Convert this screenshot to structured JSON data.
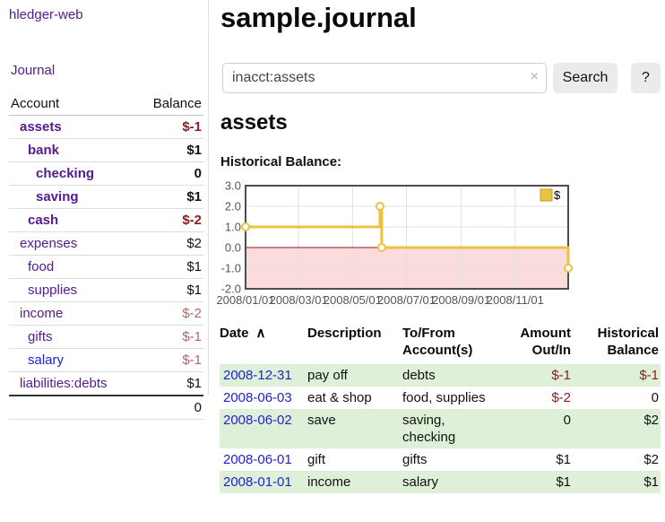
{
  "app": {
    "title": "hledger-web"
  },
  "sidebar": {
    "journal_link": "Journal",
    "accounts_header": {
      "account": "Account",
      "balance": "Balance"
    },
    "accounts": [
      {
        "name": "assets",
        "balance": "$-1",
        "level": 0,
        "bold": true,
        "neg": true,
        "unvisited": false
      },
      {
        "name": "bank",
        "balance": "$1",
        "level": 1,
        "bold": true,
        "neg": false,
        "unvisited": false
      },
      {
        "name": "checking",
        "balance": "0",
        "level": 2,
        "bold": true,
        "neg": false,
        "unvisited": false
      },
      {
        "name": "saving",
        "balance": "$1",
        "level": 2,
        "bold": true,
        "neg": false,
        "unvisited": false
      },
      {
        "name": "cash",
        "balance": "$-2",
        "level": 1,
        "bold": true,
        "neg": true,
        "unvisited": false
      },
      {
        "name": "expenses",
        "balance": "$2",
        "level": 0,
        "bold": false,
        "neg": false,
        "unvisited": false
      },
      {
        "name": "food",
        "balance": "$1",
        "level": 1,
        "bold": false,
        "neg": false,
        "unvisited": false
      },
      {
        "name": "supplies",
        "balance": "$1",
        "level": 1,
        "bold": false,
        "neg": false,
        "unvisited": false
      },
      {
        "name": "income",
        "balance": "$-2",
        "level": 0,
        "bold": false,
        "neg": true,
        "unvisited": false
      },
      {
        "name": "gifts",
        "balance": "$-1",
        "level": 1,
        "bold": false,
        "neg": true,
        "unvisited": false
      },
      {
        "name": "salary",
        "balance": "$-1",
        "level": 1,
        "bold": false,
        "neg": true,
        "unvisited": true
      },
      {
        "name": "liabilities:debts",
        "balance": "$1",
        "level": 0,
        "bold": false,
        "neg": false,
        "unvisited": false
      }
    ],
    "total": "0"
  },
  "header": {
    "title": "sample.journal"
  },
  "search": {
    "value": "inacct:assets",
    "clear_icon": "×",
    "button": "Search",
    "help_button": "?"
  },
  "account_page": {
    "title": "assets",
    "chart_label": "Historical Balance:"
  },
  "chart_data": {
    "type": "line",
    "step": true,
    "title": "Historical Balance",
    "series": [
      {
        "name": "$",
        "color": "#EDC240",
        "points": [
          [
            "2008-01-01",
            1.0
          ],
          [
            "2008-06-01",
            2.0
          ],
          [
            "2008-06-03",
            0.0
          ],
          [
            "2008-12-31",
            -1.0
          ]
        ]
      }
    ],
    "xlim": [
      "2008-01-01",
      "2008-12-31"
    ],
    "ylim": [
      -2.0,
      3.0
    ],
    "yticks": [
      3.0,
      2.0,
      1.0,
      0.0,
      -1.0,
      -2.0
    ],
    "xticks": [
      {
        "date": "2008-01-01",
        "label": "2008/01/01"
      },
      {
        "date": "2008-03-01",
        "label": "2008/03/01"
      },
      {
        "date": "2008-05-01",
        "label": "2008/05/01"
      },
      {
        "date": "2008-07-01",
        "label": "2008/07/01"
      },
      {
        "date": "2008-09-01",
        "label": "2008/09/01"
      },
      {
        "date": "2008-11-01",
        "label": "2008/11/01"
      }
    ],
    "legend": {
      "label": "$",
      "position": "top-right"
    },
    "grid": true,
    "negative_region_color": "#fbdcdc",
    "zero_line_color": "#871414",
    "axis_label_color": "#555555",
    "border_color": "#4d4d4d"
  },
  "register": {
    "columns": [
      "Date",
      "Description",
      "To/From Account(s)",
      "Amount Out/In",
      "Historical Balance"
    ],
    "sort_icon": "∧",
    "rows": [
      {
        "date": "2008-12-31",
        "description": "pay off",
        "accounts": "debts",
        "amount": "$-1",
        "balance": "$-1"
      },
      {
        "date": "2008-06-03",
        "description": "eat & shop",
        "accounts": "food, supplies",
        "amount": "$-2",
        "balance": "0"
      },
      {
        "date": "2008-06-02",
        "description": "save",
        "accounts": "saving, checking",
        "amount": "0",
        "balance": "$2"
      },
      {
        "date": "2008-06-01",
        "description": "gift",
        "accounts": "gifts",
        "amount": "$1",
        "balance": "$2"
      },
      {
        "date": "2008-01-01",
        "description": "income",
        "accounts": "salary",
        "amount": "$1",
        "balance": "$1"
      }
    ]
  }
}
